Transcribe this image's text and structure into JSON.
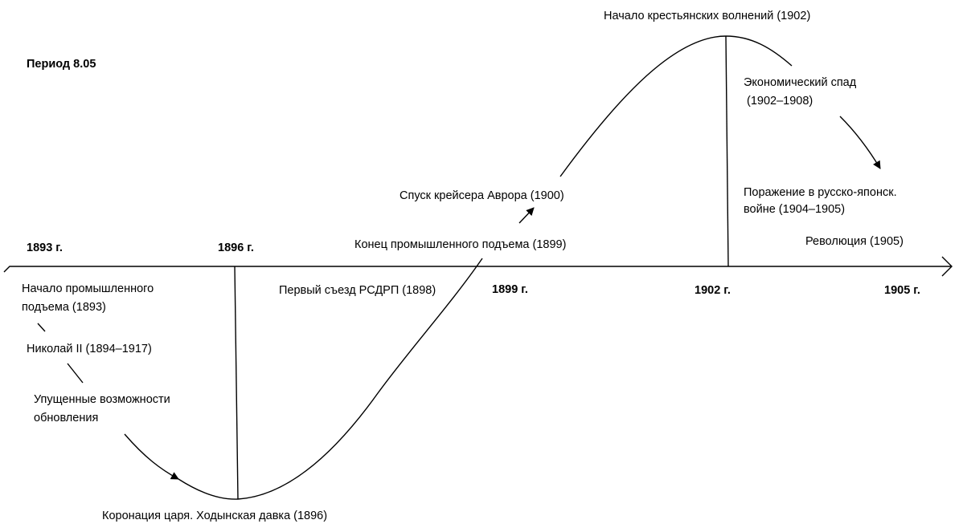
{
  "period": "Период 8.05",
  "years": [
    "1893 г.",
    "1896 г.",
    "1899 г.",
    "1902 г.",
    "1905 г."
  ],
  "events": [
    {
      "lines": [
        "Начало промышленного",
        "подъема (1893)"
      ]
    },
    {
      "lines": [
        "Николай II (1894–1917)"
      ]
    },
    {
      "lines": [
        "Упущенные возможности",
        "обновления"
      ]
    },
    {
      "lines": [
        "Коронация царя. Ходынская давка (1896)"
      ]
    },
    {
      "lines": [
        "Первый съезд РСДРП (1898)"
      ]
    },
    {
      "lines": [
        "Конец промышленного подъема (1899)"
      ]
    },
    {
      "lines": [
        "Спуск крейсера Аврора (1900)"
      ]
    },
    {
      "lines": [
        "Начало крестьянских волнений (1902)"
      ]
    },
    {
      "lines": [
        "Экономический спад",
        " (1902–1908)"
      ]
    },
    {
      "lines": [
        "Поражение в русско-японск.",
        "войне (1904–1905)"
      ]
    },
    {
      "lines": [
        "Революция (1905)"
      ]
    }
  ]
}
